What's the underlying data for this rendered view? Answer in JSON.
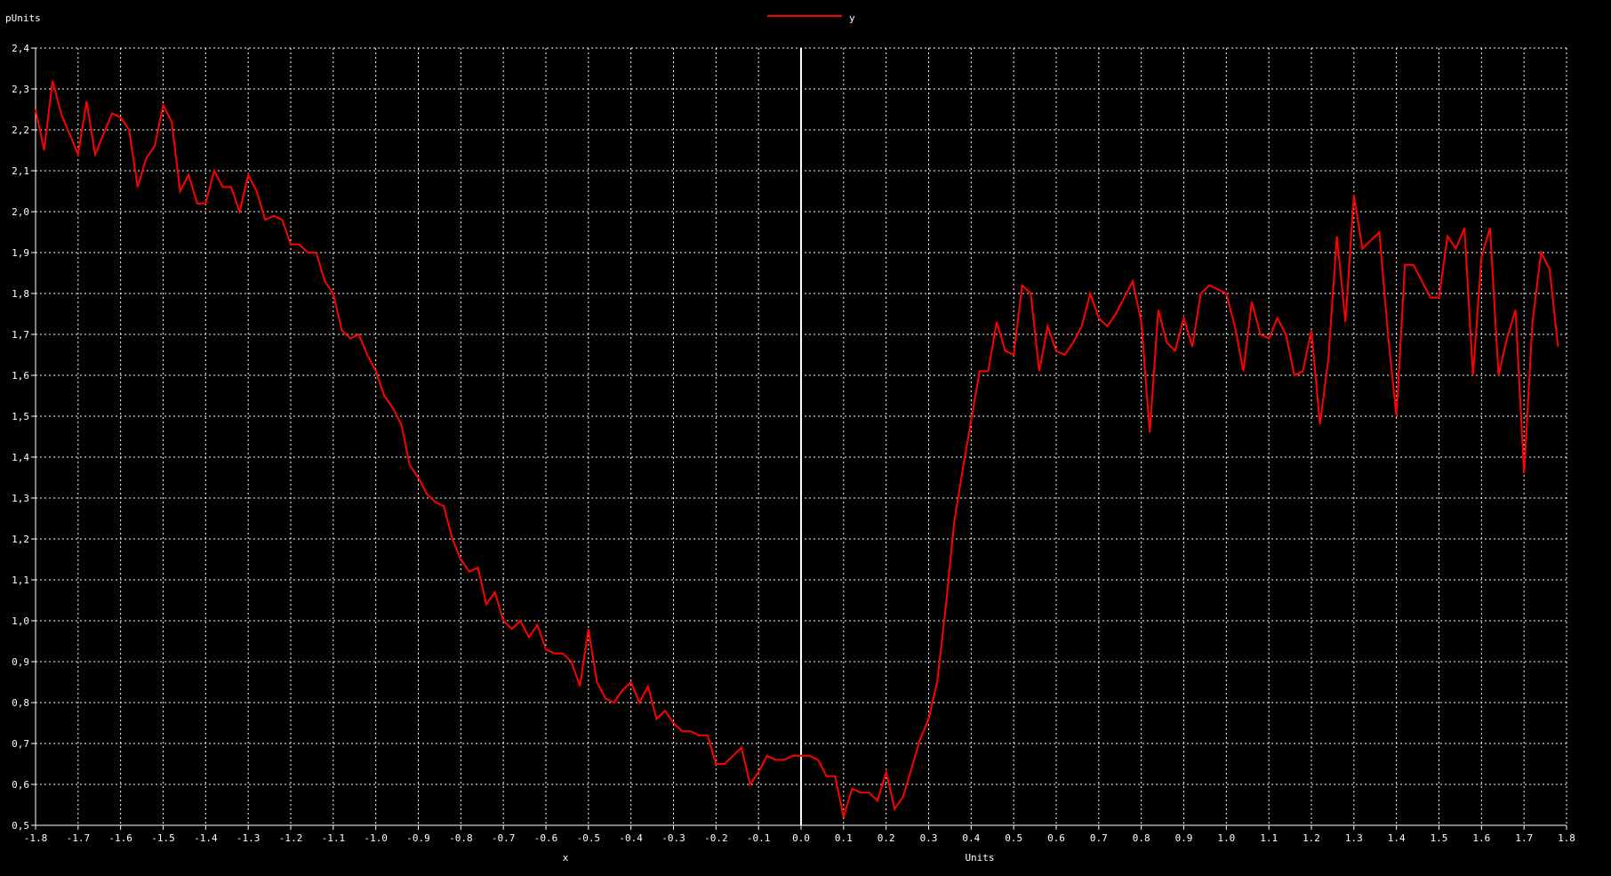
{
  "chart_data": {
    "type": "line",
    "ylabel": "pUnits",
    "xlabel": "Units",
    "x_marker_label": "x",
    "xlim": [
      -1.8,
      1.8
    ],
    "ylim": [
      0.5,
      2.4
    ],
    "grid": true,
    "legend_position": "top-center",
    "background_color": "#000000",
    "axis_color": "#ffffff",
    "grid_color": "#ffffff",
    "vertical_marker": {
      "x": 0.0,
      "color": "#ffffff"
    },
    "xticks": [
      "-1.8",
      "-1.7",
      "-1.6",
      "-1.5",
      "-1.4",
      "-1.3",
      "-1.2",
      "-1.1",
      "-1.0",
      "-0.9",
      "-0.8",
      "-0.7",
      "-0.6",
      "-0.5",
      "-0.4",
      "-0.3",
      "-0.2",
      "-0.1",
      "0.0",
      "0.1",
      "0.2",
      "0.3",
      "0.4",
      "0.5",
      "0.6",
      "0.7",
      "0.8",
      "0.9",
      "1.0",
      "1.1",
      "1.2",
      "1.3",
      "1.4",
      "1.5",
      "1.6",
      "1.7",
      "1.8"
    ],
    "yticks": [
      "0.5",
      "0.6",
      "0.7",
      "0.8",
      "0.9",
      "1.0",
      "1.1",
      "1.2",
      "1.3",
      "1.4",
      "1.5",
      "1.6",
      "1.7",
      "1.8",
      "1.9",
      "2.0",
      "2.1",
      "2.2",
      "2.3",
      "2.4"
    ],
    "series": [
      {
        "name": "y",
        "color": "#ff0000",
        "x": [
          -1.8,
          -1.78,
          -1.76,
          -1.74,
          -1.7,
          -1.68,
          -1.66,
          -1.64,
          -1.62,
          -1.6,
          -1.58,
          -1.56,
          -1.54,
          -1.52,
          -1.5,
          -1.48,
          -1.46,
          -1.44,
          -1.42,
          -1.4,
          -1.38,
          -1.36,
          -1.34,
          -1.32,
          -1.3,
          -1.28,
          -1.26,
          -1.24,
          -1.22,
          -1.2,
          -1.18,
          -1.16,
          -1.14,
          -1.12,
          -1.1,
          -1.08,
          -1.06,
          -1.04,
          -1.02,
          -1.0,
          -0.98,
          -0.96,
          -0.94,
          -0.92,
          -0.9,
          -0.88,
          -0.86,
          -0.84,
          -0.82,
          -0.8,
          -0.78,
          -0.76,
          -0.74,
          -0.72,
          -0.7,
          -0.68,
          -0.66,
          -0.64,
          -0.62,
          -0.6,
          -0.58,
          -0.56,
          -0.54,
          -0.52,
          -0.5,
          -0.48,
          -0.46,
          -0.44,
          -0.42,
          -0.4,
          -0.38,
          -0.36,
          -0.34,
          -0.32,
          -0.3,
          -0.28,
          -0.26,
          -0.24,
          -0.22,
          -0.2,
          -0.18,
          -0.16,
          -0.14,
          -0.12,
          -0.1,
          -0.08,
          -0.06,
          -0.04,
          -0.02,
          0.0,
          0.02,
          0.04,
          0.06,
          0.08,
          0.1,
          0.12,
          0.14,
          0.16,
          0.18,
          0.2,
          0.22,
          0.24,
          0.26,
          0.28,
          0.3,
          0.32,
          0.34,
          0.36,
          0.38,
          0.4,
          0.42,
          0.44,
          0.46,
          0.48,
          0.5,
          0.52,
          0.54,
          0.56,
          0.58,
          0.6,
          0.62,
          0.64,
          0.66,
          0.68,
          0.7,
          0.72,
          0.74,
          0.76,
          0.78,
          0.8,
          0.82,
          0.84,
          0.86,
          0.88,
          0.9,
          0.92,
          0.94,
          0.96,
          0.98,
          1.0,
          1.02,
          1.04,
          1.06,
          1.08,
          1.1,
          1.12,
          1.14,
          1.16,
          1.18,
          1.2,
          1.22,
          1.24,
          1.26,
          1.28,
          1.3,
          1.32,
          1.34,
          1.36,
          1.38,
          1.4,
          1.42,
          1.44,
          1.46,
          1.48,
          1.5,
          1.52,
          1.54,
          1.56,
          1.58,
          1.6,
          1.62,
          1.64,
          1.66,
          1.68,
          1.7,
          1.72,
          1.74,
          1.76,
          1.78
        ],
        "y": [
          2.25,
          2.15,
          2.32,
          2.24,
          2.14,
          2.27,
          2.14,
          2.19,
          2.24,
          2.23,
          2.2,
          2.06,
          2.13,
          2.16,
          2.26,
          2.22,
          2.05,
          2.09,
          2.02,
          2.02,
          2.1,
          2.06,
          2.06,
          2.0,
          2.09,
          2.05,
          1.98,
          1.99,
          1.98,
          1.92,
          1.92,
          1.9,
          1.9,
          1.83,
          1.8,
          1.71,
          1.69,
          1.7,
          1.65,
          1.61,
          1.55,
          1.52,
          1.48,
          1.38,
          1.35,
          1.31,
          1.29,
          1.28,
          1.2,
          1.15,
          1.12,
          1.13,
          1.04,
          1.07,
          1.0,
          0.98,
          1.0,
          0.96,
          0.99,
          0.93,
          0.92,
          0.92,
          0.9,
          0.84,
          0.98,
          0.85,
          0.81,
          0.8,
          0.83,
          0.85,
          0.8,
          0.84,
          0.76,
          0.78,
          0.75,
          0.73,
          0.73,
          0.72,
          0.72,
          0.65,
          0.65,
          0.67,
          0.69,
          0.6,
          0.63,
          0.67,
          0.66,
          0.66,
          0.67,
          0.67,
          0.67,
          0.66,
          0.62,
          0.62,
          0.52,
          0.59,
          0.58,
          0.58,
          0.56,
          0.63,
          0.54,
          0.57,
          0.64,
          0.71,
          0.76,
          0.85,
          1.03,
          1.24,
          1.37,
          1.49,
          1.61,
          1.61,
          1.73,
          1.66,
          1.65,
          1.82,
          1.8,
          1.61,
          1.72,
          1.66,
          1.65,
          1.68,
          1.72,
          1.8,
          1.74,
          1.72,
          1.75,
          1.79,
          1.83,
          1.73,
          1.46,
          1.76,
          1.68,
          1.66,
          1.74,
          1.67,
          1.8,
          1.82,
          1.81,
          1.8,
          1.72,
          1.61,
          1.78,
          1.7,
          1.69,
          1.74,
          1.7,
          1.6,
          1.61,
          1.71,
          1.48,
          1.64,
          1.94,
          1.73,
          2.04,
          1.91,
          1.93,
          1.95,
          1.7,
          1.5,
          1.87,
          1.87,
          1.83,
          1.79,
          1.79,
          1.94,
          1.91,
          1.96,
          1.6,
          1.89,
          1.96,
          1.6,
          1.69,
          1.76,
          1.36,
          1.73,
          1.9,
          1.86,
          1.67
        ]
      }
    ]
  }
}
